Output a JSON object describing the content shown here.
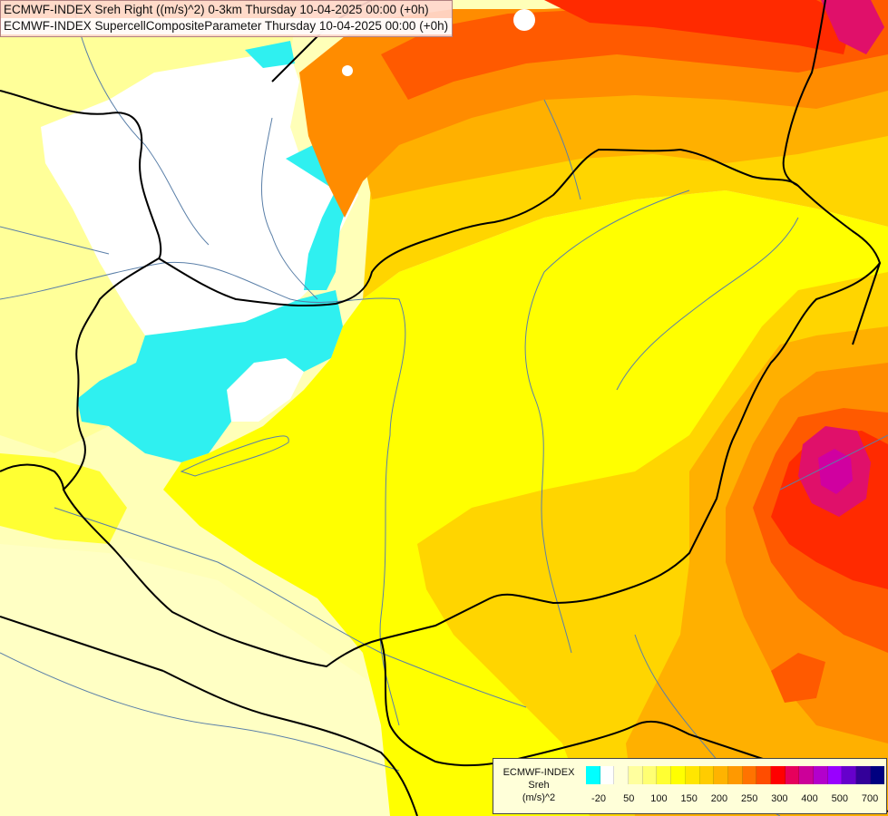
{
  "header": {
    "line1": "ECMWF-INDEX Sreh Right ((m/s)^2) 0-3km Thursday 10-04-2025 00:00 (+0h)",
    "line2": "ECMWF-INDEX SupercellCompositeParameter Thursday 10-04-2025 00:00 (+0h)"
  },
  "legend": {
    "title_lines": [
      "ECMWF-INDEX",
      "Sreh",
      "(m/s)^2"
    ],
    "colors": [
      "#00ffff",
      "#ffffff",
      "#ffffd9",
      "#ffff9e",
      "#ffff73",
      "#ffff33",
      "#ffff00",
      "#ffe600",
      "#ffcc00",
      "#ffb300",
      "#ff9900",
      "#ff7300",
      "#ff4d00",
      "#ff0000",
      "#e6005c",
      "#cc0099",
      "#b300cc",
      "#9900ff",
      "#6600cc",
      "#330099",
      "#000080"
    ],
    "ticks": [
      "-20",
      "50",
      "100",
      "150",
      "200",
      "250",
      "300",
      "400",
      "500",
      "700"
    ]
  },
  "fields": {
    "background": "#ffffb8",
    "cyan": "#2ff0f0",
    "white": "#ffffff",
    "pale_yellow": "#ffff99",
    "yellow": "#ffff00",
    "gold": "#ffd500",
    "orange": "#ffb000",
    "dark_orange": "#ff8c00",
    "red_orange": "#ff5a00",
    "red": "#ff2a00",
    "magenta": "#e0106a",
    "purple": "#d000a0",
    "border_color": "#000000",
    "river_color": "#5a7fa8"
  }
}
